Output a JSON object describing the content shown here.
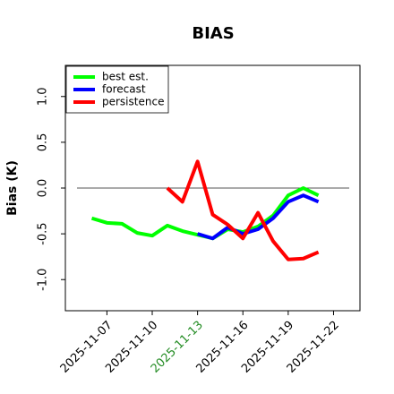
{
  "chart_data": {
    "type": "line",
    "title": "BIAS",
    "y_label": "Bias (K)",
    "x": [
      "2025-11-06",
      "2025-11-07",
      "2025-11-08",
      "2025-11-09",
      "2025-11-10",
      "2025-11-11",
      "2025-11-12",
      "2025-11-13",
      "2025-11-14",
      "2025-11-15",
      "2025-11-16",
      "2025-11-17",
      "2025-11-18",
      "2025-11-19",
      "2025-11-20",
      "2025-11-21"
    ],
    "series": [
      {
        "name": "best est.",
        "color": "#00ff00",
        "values": [
          -0.33,
          -0.38,
          -0.39,
          -0.49,
          -0.52,
          -0.41,
          -0.47,
          -0.51,
          -0.55,
          -0.45,
          -0.48,
          -0.42,
          -0.3,
          -0.08,
          0.0,
          -0.08
        ]
      },
      {
        "name": "forecast",
        "color": "#0000ff",
        "values": [
          null,
          null,
          null,
          null,
          null,
          null,
          null,
          -0.5,
          -0.55,
          -0.43,
          -0.5,
          -0.45,
          -0.33,
          -0.15,
          -0.08,
          -0.15
        ]
      },
      {
        "name": "persistence",
        "color": "#ff0000",
        "values": [
          null,
          null,
          null,
          null,
          null,
          0.0,
          -0.15,
          0.29,
          -0.29,
          -0.4,
          -0.55,
          -0.27,
          -0.58,
          -0.78,
          -0.77,
          -0.7
        ]
      }
    ],
    "xlim": [
      "2025-11-04T06:00",
      "2025-11-23T18:00"
    ],
    "xticks": [
      "2025-11-07",
      "2025-11-10",
      "2025-11-13",
      "2025-11-16",
      "2025-11-19",
      "2025-11-22"
    ],
    "xtick_colors": [
      "#000000",
      "#000000",
      "#228b22",
      "#000000",
      "#000000",
      "#000000"
    ],
    "ylim": [
      -1.34,
      1.34
    ],
    "yticks": [
      {
        "value": -1,
        "label": "-1.0"
      },
      {
        "value": -0.5,
        "label": "-0.5"
      },
      {
        "value": 0,
        "label": "0.0"
      },
      {
        "value": 0.5,
        "label": "0.5"
      },
      {
        "value": 1,
        "label": "1.0"
      }
    ],
    "reference_line": 0,
    "legend": "upper left"
  }
}
